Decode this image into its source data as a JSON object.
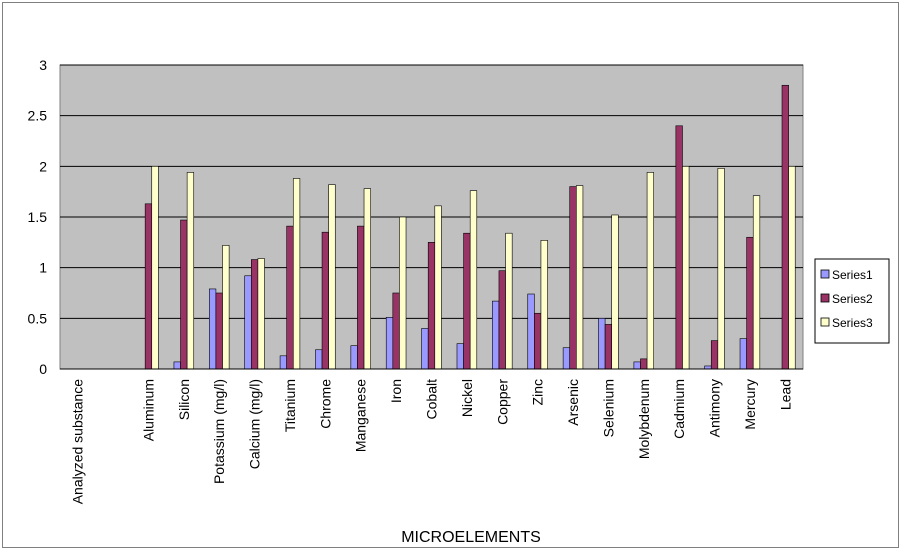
{
  "chart_data": {
    "type": "bar",
    "xlabel": "MICROELEMENTS",
    "ylabel": "",
    "title": "",
    "ylim": [
      0,
      3
    ],
    "yticks": [
      "0",
      "0.5",
      "1",
      "1.5",
      "2",
      "2.5",
      "3"
    ],
    "ytick_values": [
      0,
      0.5,
      1,
      1.5,
      2,
      2.5,
      3
    ],
    "grid": "horizontal",
    "legend_position": "right",
    "categories": [
      "Analyzed substance",
      "",
      "Aluminum",
      "Silicon",
      "Potassium (mg/l)",
      "Calcium (mg/l)",
      "Titanium",
      "Chrome",
      "Manganese",
      "Iron",
      "Cobalt",
      "Nickel",
      "Copper",
      "Zinc",
      "Arsenic",
      "Selenium",
      "Molybdenum",
      "Cadmium",
      "Antimony",
      "Mercury",
      "Lead"
    ],
    "series": [
      {
        "name": "Series1",
        "color": "#9999FF",
        "values": [
          null,
          null,
          0,
          0.07,
          0.79,
          0.92,
          0.13,
          0.19,
          0.23,
          0.51,
          0.4,
          0.25,
          0.67,
          0.74,
          0.21,
          0.5,
          0.07,
          0,
          0.03,
          0.3,
          0
        ]
      },
      {
        "name": "Series2",
        "color": "#993366",
        "values": [
          null,
          null,
          1.63,
          1.47,
          0.75,
          1.08,
          1.41,
          1.35,
          1.41,
          0.75,
          1.25,
          1.34,
          0.97,
          0.55,
          1.8,
          0.44,
          0.1,
          2.4,
          0.28,
          1.3,
          2.8
        ]
      },
      {
        "name": "Series3",
        "color": "#FFFFCC",
        "values": [
          null,
          null,
          2.0,
          1.94,
          1.22,
          1.09,
          1.88,
          1.82,
          1.78,
          1.5,
          1.61,
          1.76,
          1.34,
          1.27,
          1.81,
          1.52,
          1.94,
          2.0,
          1.98,
          1.71,
          2.0
        ]
      }
    ]
  },
  "colors": {
    "plot_background": "#C0C0C0",
    "gridline": "#000000",
    "border": "#808080"
  }
}
